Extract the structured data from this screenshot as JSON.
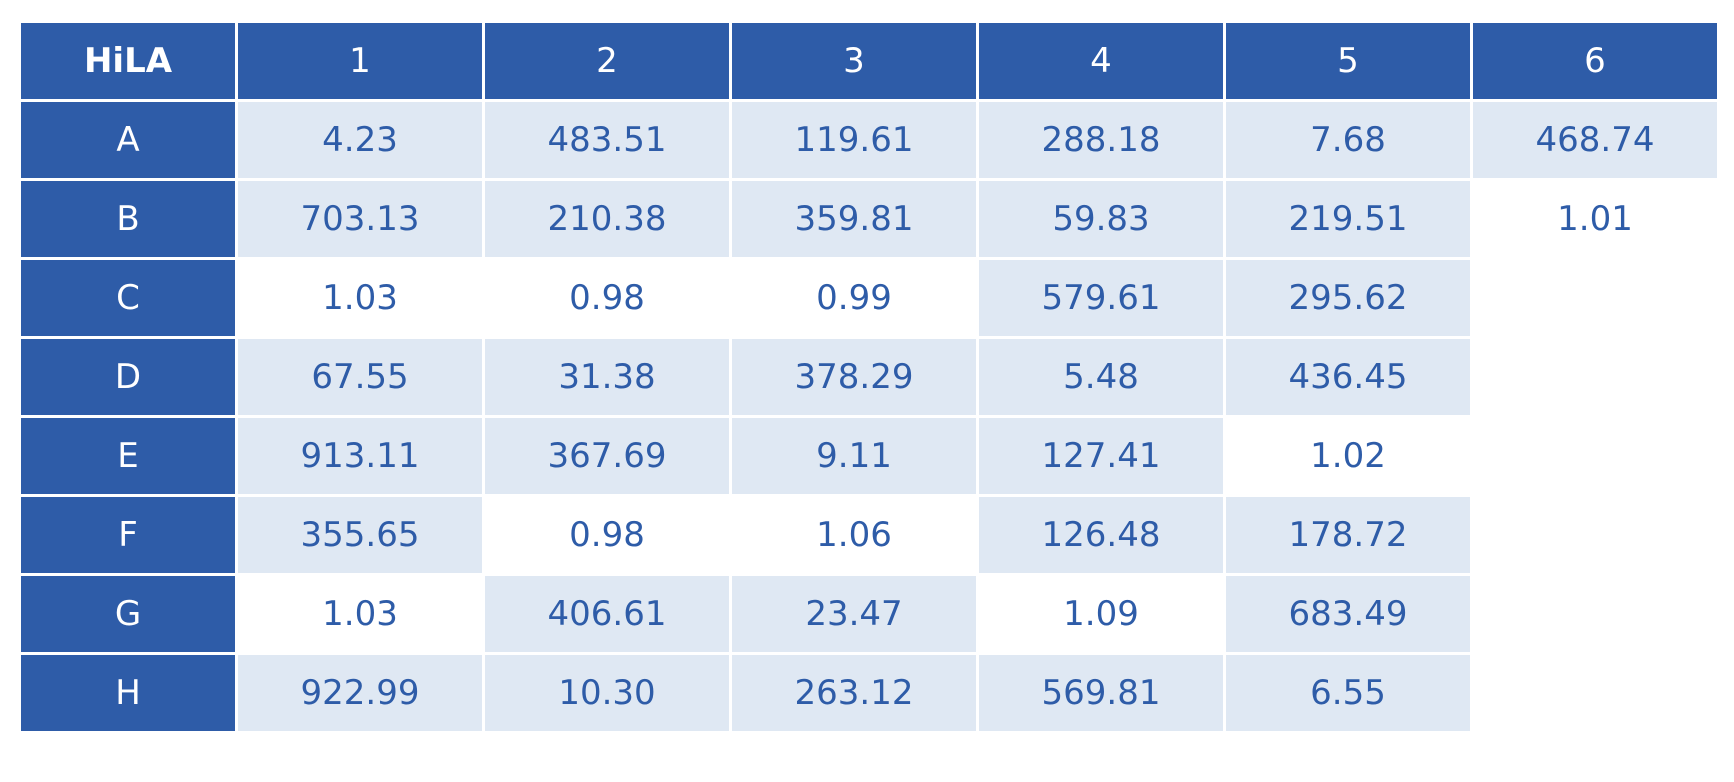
{
  "table": {
    "header": [
      "HiLA",
      "1",
      "2",
      "3",
      "4",
      "5",
      "6"
    ],
    "rows": [
      {
        "label": "A",
        "cells": [
          {
            "text": "4.23",
            "shaded": true
          },
          {
            "text": "483.51",
            "shaded": true
          },
          {
            "text": "119.61",
            "shaded": true
          },
          {
            "text": "288.18",
            "shaded": true
          },
          {
            "text": "7.68",
            "shaded": true
          },
          {
            "text": "468.74",
            "shaded": true
          }
        ]
      },
      {
        "label": "B",
        "cells": [
          {
            "text": "703.13",
            "shaded": true
          },
          {
            "text": "210.38",
            "shaded": true
          },
          {
            "text": "359.81",
            "shaded": true
          },
          {
            "text": "59.83",
            "shaded": true
          },
          {
            "text": "219.51",
            "shaded": true
          },
          {
            "text": "1.01",
            "shaded": false
          }
        ]
      },
      {
        "label": "C",
        "cells": [
          {
            "text": "1.03",
            "shaded": false
          },
          {
            "text": "0.98",
            "shaded": false
          },
          {
            "text": "0.99",
            "shaded": false
          },
          {
            "text": "579.61",
            "shaded": true
          },
          {
            "text": "295.62",
            "shaded": true
          }
        ]
      },
      {
        "label": "D",
        "cells": [
          {
            "text": "67.55",
            "shaded": true
          },
          {
            "text": "31.38",
            "shaded": true
          },
          {
            "text": "378.29",
            "shaded": true
          },
          {
            "text": "5.48",
            "shaded": true
          },
          {
            "text": "436.45",
            "shaded": true
          }
        ]
      },
      {
        "label": "E",
        "cells": [
          {
            "text": "913.11",
            "shaded": true
          },
          {
            "text": "367.69",
            "shaded": true
          },
          {
            "text": "9.11",
            "shaded": true
          },
          {
            "text": "127.41",
            "shaded": true
          },
          {
            "text": "1.02",
            "shaded": false
          }
        ]
      },
      {
        "label": "F",
        "cells": [
          {
            "text": "355.65",
            "shaded": true
          },
          {
            "text": "0.98",
            "shaded": false
          },
          {
            "text": "1.06",
            "shaded": false
          },
          {
            "text": "126.48",
            "shaded": true
          },
          {
            "text": "178.72",
            "shaded": true
          }
        ]
      },
      {
        "label": "G",
        "cells": [
          {
            "text": "1.03",
            "shaded": false
          },
          {
            "text": "406.61",
            "shaded": true
          },
          {
            "text": "23.47",
            "shaded": true
          },
          {
            "text": "1.09",
            "shaded": false
          },
          {
            "text": "683.49",
            "shaded": true
          }
        ]
      },
      {
        "label": "H",
        "cells": [
          {
            "text": "922.99",
            "shaded": true
          },
          {
            "text": "10.30",
            "shaded": true
          },
          {
            "text": "263.12",
            "shaded": true
          },
          {
            "text": "569.81",
            "shaded": true
          },
          {
            "text": "6.55",
            "shaded": true
          }
        ]
      }
    ]
  }
}
